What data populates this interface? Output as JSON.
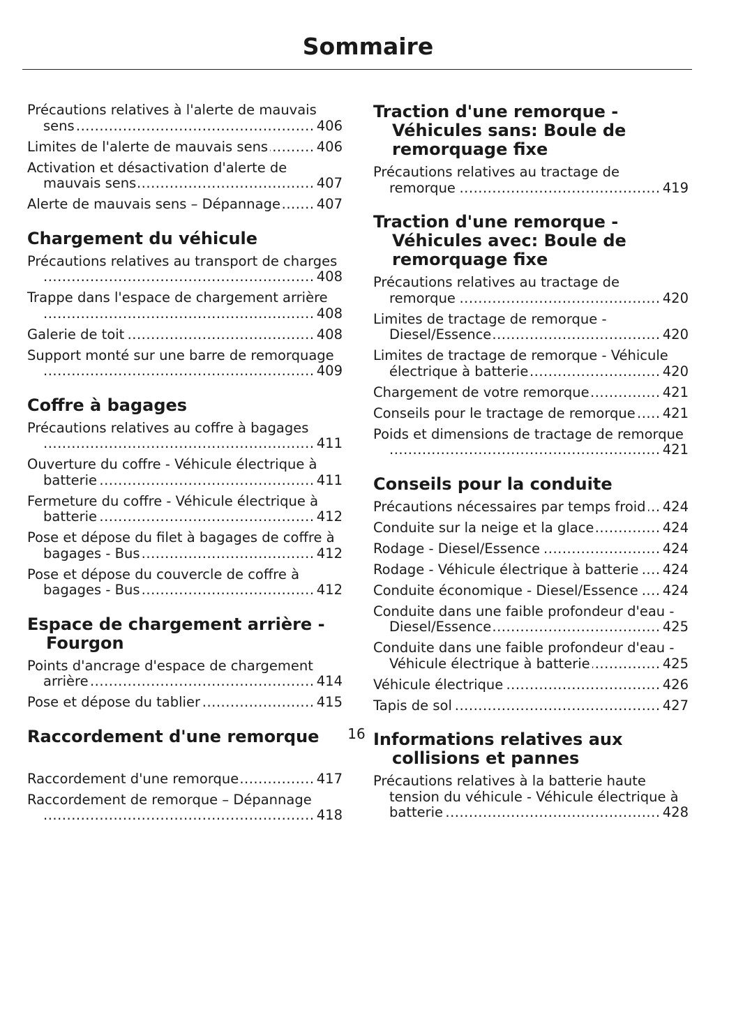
{
  "header": {
    "title": "Sommaire"
  },
  "columns": [
    {
      "sections": [
        {
          "entries": [
            {
              "title": "Précautions relatives à l'alerte de mauvais sens",
              "page": "406"
            },
            {
              "title": "Limites de l'alerte de mauvais sens",
              "page": "406"
            },
            {
              "title": "Activation et désactivation d'alerte de mauvais sens",
              "page": "407"
            },
            {
              "title": "Alerte de mauvais sens – Dépannage",
              "page": "407"
            }
          ]
        },
        {
          "heading": "Chargement du véhicule",
          "entries": [
            {
              "title": "Précautions relatives au transport de charges",
              "page": "408"
            },
            {
              "title": "Trappe dans l'espace de chargement arrière",
              "page": "408"
            },
            {
              "title": "Galerie de toit",
              "page": "408"
            },
            {
              "title": "Support monté sur une barre de remorquage",
              "page": "409"
            }
          ]
        },
        {
          "heading": "Coffre à bagages",
          "entries": [
            {
              "title": "Précautions relatives au coffre à bagages",
              "page": "411"
            },
            {
              "title": "Ouverture du coffre - Véhicule électrique à batterie",
              "page": "411"
            },
            {
              "title": "Fermeture du coffre - Véhicule électrique à batterie",
              "page": "412"
            },
            {
              "title": "Pose et dépose du filet à bagages de coffre à bagages - Bus",
              "page": "412"
            },
            {
              "title": "Pose et dépose du couvercle de coffre à bagages - Bus",
              "page": "412"
            }
          ]
        },
        {
          "heading": "Espace de chargement arrière - Fourgon",
          "entries": [
            {
              "title": "Points d'ancrage d'espace de chargement arrière",
              "page": "414"
            },
            {
              "title": "Pose et dépose du tablier",
              "page": "415"
            }
          ]
        },
        {
          "heading": "Raccordement d'une remorque",
          "entries": [
            {
              "title": "Raccordement d'une remorque",
              "page": "417"
            },
            {
              "title": "Raccordement de remorque – Dépannage",
              "page": "418"
            }
          ]
        }
      ]
    },
    {
      "sections": [
        {
          "heading": "Traction d'une remorque - Véhicules sans: Boule de remorquage fixe",
          "entries": [
            {
              "title": "Précautions relatives au tractage de remorque",
              "page": "419"
            }
          ]
        },
        {
          "heading": "Traction d'une remorque - Véhicules avec: Boule de remorquage fixe",
          "entries": [
            {
              "title": "Précautions relatives au tractage de remorque",
              "page": "420"
            },
            {
              "title": "Limites de tractage de remorque - Diesel/Essence",
              "page": "420"
            },
            {
              "title": "Limites de tractage de remorque - Véhicule électrique à batterie",
              "page": "420"
            },
            {
              "title": "Chargement de votre remorque",
              "page": "421"
            },
            {
              "title": "Conseils pour le tractage de remorque",
              "page": "421"
            },
            {
              "title": "Poids et dimensions de tractage de remorque",
              "page": "421"
            }
          ]
        },
        {
          "heading": "Conseils pour la conduite",
          "entries": [
            {
              "title": "Précautions nécessaires par temps froid",
              "page": "424"
            },
            {
              "title": "Conduite sur la neige et la glace",
              "page": "424"
            },
            {
              "title": "Rodage - Diesel/Essence",
              "page": "424"
            },
            {
              "title": "Rodage - Véhicule électrique à batterie",
              "page": "424"
            },
            {
              "title": "Conduite économique - Diesel/Essence",
              "page": "424"
            },
            {
              "title": "Conduite dans une faible profondeur d'eau - Diesel/Essence",
              "page": "425"
            },
            {
              "title": "Conduite dans une faible profondeur d'eau - Véhicule électrique à batterie",
              "page": "425"
            },
            {
              "title": "Véhicule électrique",
              "page": "426"
            },
            {
              "title": "Tapis de sol",
              "page": "427"
            }
          ]
        },
        {
          "heading": "Informations relatives aux collisions et pannes",
          "entries": [
            {
              "title": "Précautions relatives à la batterie haute tension du véhicule - Véhicule électrique à batterie",
              "page": "428"
            }
          ]
        }
      ]
    }
  ],
  "footer": {
    "page_number": "16"
  }
}
